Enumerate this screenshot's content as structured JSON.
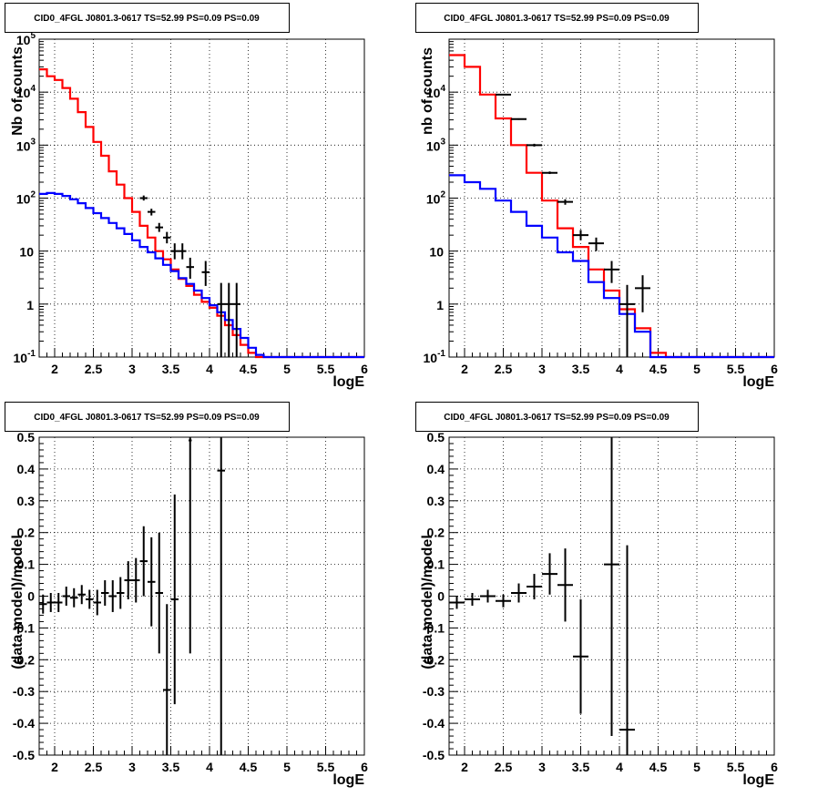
{
  "chart_data": [
    {
      "type": "step-histogram",
      "title": "CID0_4FGL J0801.3-0617 TS=52.99 PS=0.09 PS=0.09",
      "xlabel": "logE",
      "ylabel": "Nb of counts",
      "xlim": [
        1.8,
        6.0
      ],
      "ylim": [
        0.1,
        100000
      ],
      "yscale": "log",
      "grid": true,
      "x_ticks": [
        "2",
        "2.5",
        "3",
        "3.5",
        "4",
        "4.5",
        "5",
        "5.5",
        "6"
      ],
      "y_ticks": [
        "10^-1",
        "1",
        "10",
        "10^2",
        "10^3",
        "10^4",
        "10^5"
      ],
      "bin_width": 0.1,
      "series": [
        {
          "color": "#ff0000",
          "bins_start": 1.8,
          "values": [
            27000,
            20000,
            17000,
            12000,
            7500,
            4200,
            2200,
            1150,
            630,
            320,
            180,
            100,
            55,
            30,
            18,
            10,
            7,
            4.5,
            3,
            2.2,
            1.5,
            1.1,
            0.85,
            0.6,
            0.4,
            0.26,
            0.17,
            0.12,
            0.1,
            0.1,
            0.1,
            0.1,
            0.1,
            0.1,
            0.1,
            0.1,
            0.1,
            0.1,
            0.1,
            0.1,
            0.1,
            0.1
          ]
        },
        {
          "color": "#0000ff",
          "bins_start": 1.8,
          "values": [
            120,
            125,
            120,
            110,
            95,
            80,
            65,
            52,
            42,
            34,
            27,
            21,
            16,
            12,
            9.5,
            7.3,
            5.5,
            4.2,
            3.1,
            2.4,
            1.8,
            1.3,
            0.95,
            0.7,
            0.5,
            0.34,
            0.23,
            0.15,
            0.11,
            0.1,
            0.1,
            0.1,
            0.1,
            0.1,
            0.1,
            0.1,
            0.1,
            0.1,
            0.1,
            0.1,
            0.1,
            0.1
          ]
        }
      ],
      "points": [
        {
          "x": 3.15,
          "y": 100,
          "lo": 90,
          "hi": 112
        },
        {
          "x": 3.25,
          "y": 55,
          "lo": 47,
          "hi": 63
        },
        {
          "x": 3.35,
          "y": 28,
          "lo": 23,
          "hi": 34
        },
        {
          "x": 3.45,
          "y": 18,
          "lo": 14,
          "hi": 23
        },
        {
          "x": 3.55,
          "y": 10,
          "lo": 7,
          "hi": 14
        },
        {
          "x": 3.65,
          "y": 10,
          "lo": 7,
          "hi": 14
        },
        {
          "x": 3.75,
          "y": 5,
          "lo": 3,
          "hi": 7.5
        },
        {
          "x": 3.95,
          "y": 4,
          "lo": 2.2,
          "hi": 6.5
        },
        {
          "x": 4.15,
          "y": 1,
          "lo": 0.1,
          "hi": 2.5
        },
        {
          "x": 4.25,
          "y": 1,
          "lo": 0.1,
          "hi": 2.5
        },
        {
          "x": 4.35,
          "y": 1,
          "lo": 0.1,
          "hi": 2.5
        }
      ]
    },
    {
      "type": "step-histogram",
      "title": "CID0_4FGL J0801.3-0617 TS=52.99 PS=0.09 PS=0.09",
      "xlabel": "logE",
      "ylabel": "nb of counts",
      "xlim": [
        1.8,
        6.0
      ],
      "ylim": [
        0.1,
        100000
      ],
      "yscale": "log",
      "grid": true,
      "x_ticks": [
        "2",
        "2.5",
        "3",
        "3.5",
        "4",
        "4.5",
        "5",
        "5.5",
        "6"
      ],
      "y_ticks": [
        "10^-1",
        "1",
        "10",
        "10^2",
        "10^3",
        "10^4"
      ],
      "bin_width": 0.2,
      "series": [
        {
          "color": "#ff0000",
          "bins_start": 1.8,
          "values": [
            50000,
            30000,
            9000,
            3200,
            1000,
            300,
            90,
            27,
            12,
            4.5,
            1.8,
            0.8,
            0.35,
            0.12,
            0.1,
            0.1,
            0.1,
            0.1,
            0.1,
            0.1,
            0.1
          ]
        },
        {
          "color": "#0000ff",
          "bins_start": 1.8,
          "values": [
            270,
            200,
            150,
            90,
            55,
            30,
            18,
            9.5,
            6.5,
            2.6,
            1.3,
            0.65,
            0.3,
            0.1,
            0.1,
            0.1,
            0.1,
            0.1,
            0.1,
            0.1,
            0.1
          ]
        }
      ],
      "points": [
        {
          "x": 2.5,
          "y": 9000,
          "lo": 8800,
          "hi": 9200
        },
        {
          "x": 2.7,
          "y": 3100,
          "lo": 3000,
          "hi": 3200
        },
        {
          "x": 2.9,
          "y": 1000,
          "lo": 940,
          "hi": 1060
        },
        {
          "x": 3.1,
          "y": 300,
          "lo": 285,
          "hi": 318
        },
        {
          "x": 3.3,
          "y": 85,
          "lo": 75,
          "hi": 95
        },
        {
          "x": 3.5,
          "y": 20,
          "lo": 16,
          "hi": 25
        },
        {
          "x": 3.7,
          "y": 14,
          "lo": 10,
          "hi": 18
        },
        {
          "x": 3.9,
          "y": 4.5,
          "lo": 2.5,
          "hi": 6.5
        },
        {
          "x": 4.1,
          "y": 1,
          "lo": 0.1,
          "hi": 2.3
        },
        {
          "x": 4.3,
          "y": 2,
          "lo": 0.7,
          "hi": 3.5
        }
      ]
    },
    {
      "type": "scatter-errorbar",
      "title": "CID0_4FGL J0801.3-0617 TS=52.99 PS=0.09 PS=0.09",
      "xlabel": "logE",
      "ylabel": "(data-model)/model",
      "xlim": [
        1.8,
        6.0
      ],
      "ylim": [
        -0.5,
        0.5
      ],
      "grid": true,
      "x_ticks": [
        "2",
        "2.5",
        "3",
        "3.5",
        "4",
        "4.5",
        "5",
        "5.5",
        "6"
      ],
      "y_ticks": [
        "-0.5",
        "-0.4",
        "-0.3",
        "-0.2",
        "-0.1",
        "0",
        "0.1",
        "0.2",
        "0.3",
        "0.4",
        "0.5"
      ],
      "points": [
        {
          "x": 1.85,
          "y": -0.025,
          "xerr": 0.05,
          "yerr": 0.03
        },
        {
          "x": 1.95,
          "y": -0.02,
          "xerr": 0.05,
          "yerr": 0.03
        },
        {
          "x": 2.05,
          "y": -0.02,
          "xerr": 0.05,
          "yerr": 0.03
        },
        {
          "x": 2.15,
          "y": 0.0,
          "xerr": 0.05,
          "yerr": 0.03
        },
        {
          "x": 2.25,
          "y": -0.005,
          "xerr": 0.05,
          "yerr": 0.03
        },
        {
          "x": 2.35,
          "y": 0.005,
          "xerr": 0.05,
          "yerr": 0.03
        },
        {
          "x": 2.45,
          "y": -0.01,
          "xerr": 0.05,
          "yerr": 0.03
        },
        {
          "x": 2.55,
          "y": -0.02,
          "xerr": 0.05,
          "yerr": 0.04
        },
        {
          "x": 2.65,
          "y": 0.01,
          "xerr": 0.05,
          "yerr": 0.04
        },
        {
          "x": 2.75,
          "y": 0.0,
          "xerr": 0.05,
          "yerr": 0.05
        },
        {
          "x": 2.85,
          "y": 0.01,
          "xerr": 0.05,
          "yerr": 0.05
        },
        {
          "x": 2.95,
          "y": 0.05,
          "xerr": 0.05,
          "yerr": 0.06
        },
        {
          "x": 3.05,
          "y": 0.05,
          "xerr": 0.05,
          "yerr": 0.07
        },
        {
          "x": 3.15,
          "y": 0.11,
          "xerr": 0.05,
          "yerr": 0.11
        },
        {
          "x": 3.25,
          "y": 0.045,
          "xerr": 0.05,
          "yerr": 0.14
        },
        {
          "x": 3.35,
          "y": 0.01,
          "xerr": 0.05,
          "yerr": 0.19
        },
        {
          "x": 3.45,
          "y": -0.295,
          "xerr": 0.05,
          "yerr": 0.27
        },
        {
          "x": 3.55,
          "y": -0.01,
          "xerr": 0.05,
          "yerr": 0.33
        },
        {
          "x": 3.75,
          "y": 0.49,
          "xerr": 0.02,
          "yerr": 0.67
        },
        {
          "x": 4.15,
          "y": 0.395,
          "xerr": 0.05,
          "yerr": 1.0
        }
      ]
    },
    {
      "type": "scatter-errorbar",
      "title": "CID0_4FGL J0801.3-0617 TS=52.99 PS=0.09 PS=0.09",
      "xlabel": "logE",
      "ylabel": "(data-model)/model",
      "xlim": [
        1.8,
        6.0
      ],
      "ylim": [
        -0.5,
        0.5
      ],
      "grid": true,
      "x_ticks": [
        "2",
        "2.5",
        "3",
        "3.5",
        "4",
        "4.5",
        "5",
        "5.5",
        "6"
      ],
      "y_ticks": [
        "-0.5",
        "-0.4",
        "-0.3",
        "-0.2",
        "-0.1",
        "0",
        "0.1",
        "0.2",
        "0.3",
        "0.4",
        "0.5"
      ],
      "points": [
        {
          "x": 1.9,
          "y": -0.02,
          "xerr": 0.1,
          "yerr": 0.02
        },
        {
          "x": 2.1,
          "y": -0.01,
          "xerr": 0.1,
          "yerr": 0.02
        },
        {
          "x": 2.3,
          "y": 0.0,
          "xerr": 0.1,
          "yerr": 0.02
        },
        {
          "x": 2.5,
          "y": -0.015,
          "xerr": 0.1,
          "yerr": 0.02
        },
        {
          "x": 2.7,
          "y": 0.01,
          "xerr": 0.1,
          "yerr": 0.03
        },
        {
          "x": 2.9,
          "y": 0.03,
          "xerr": 0.1,
          "yerr": 0.04
        },
        {
          "x": 3.1,
          "y": 0.07,
          "xerr": 0.1,
          "yerr": 0.065
        },
        {
          "x": 3.3,
          "y": 0.035,
          "xerr": 0.1,
          "yerr": 0.115
        },
        {
          "x": 3.5,
          "y": -0.19,
          "xerr": 0.1,
          "yerr": 0.18
        },
        {
          "x": 3.9,
          "y": 0.1,
          "xerr": 0.1,
          "yerr": 0.54
        },
        {
          "x": 4.1,
          "y": -0.42,
          "xerr": 0.1,
          "yerr": 0.58
        }
      ]
    }
  ]
}
